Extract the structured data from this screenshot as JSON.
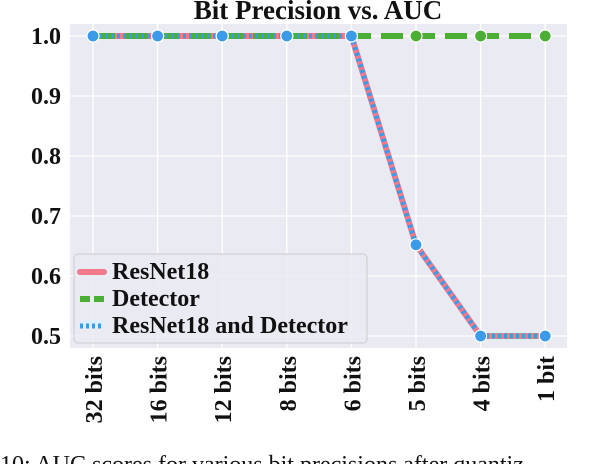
{
  "chart_data": {
    "type": "line",
    "title": "Bit Precision vs. AUC",
    "xlabel": "",
    "ylabel": "",
    "categories": [
      "32 bits",
      "16 bits",
      "12 bits",
      "8 bits",
      "6 bits",
      "5 bits",
      "4 bits",
      "1 bit"
    ],
    "ylim": [
      0.48,
      1.02
    ],
    "yticks": [
      0.5,
      0.6,
      0.7,
      0.8,
      0.9,
      1.0
    ],
    "ytick_labels": [
      "0.5",
      "0.6",
      "0.7",
      "0.8",
      "0.9",
      "1.0"
    ],
    "grid": true,
    "legend_position": "lower-left",
    "series": [
      {
        "name": "ResNet18",
        "values": [
          1.0,
          1.0,
          1.0,
          1.0,
          1.0,
          0.652,
          0.5,
          0.5
        ],
        "color": "#f07a8c",
        "style": "solid"
      },
      {
        "name": "Detector",
        "values": [
          1.0,
          1.0,
          1.0,
          1.0,
          1.0,
          1.0,
          1.0,
          1.0
        ],
        "color": "#4caf35",
        "style": "dashed"
      },
      {
        "name": "ResNet18 and Detector",
        "values": [
          1.0,
          1.0,
          1.0,
          1.0,
          1.0,
          0.652,
          0.5,
          0.5
        ],
        "color": "#3b9be8",
        "style": "dotted"
      }
    ]
  },
  "caption": "10: AUC scores for various bit precisions after quantiz",
  "colors": {
    "plot_background": "#eaeaf2",
    "grid": "#ffffff"
  }
}
